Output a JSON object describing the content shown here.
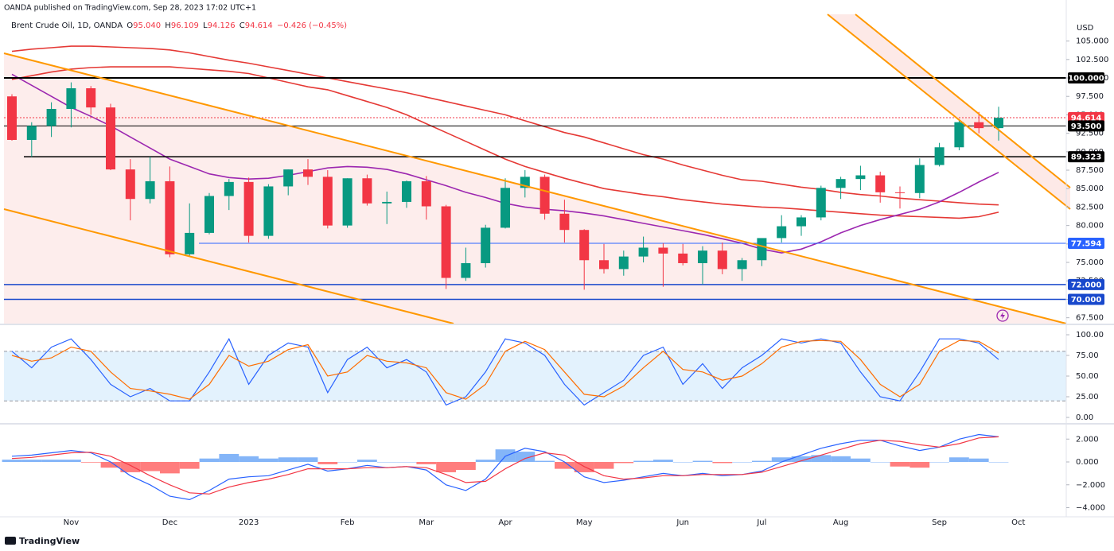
{
  "header": {
    "publisher": "OANDA published on TradingView.com, Sep 28, 2023 17:02 UTC+1",
    "symbol": "Brent Crude Oil, 1D, OANDA",
    "ohlc": [
      {
        "label": "O",
        "value": "95.040"
      },
      {
        "label": "H",
        "value": "96.109"
      },
      {
        "label": "L",
        "value": "94.126"
      },
      {
        "label": "C",
        "value": "94.614"
      }
    ],
    "change": "−0.426 (−0.45%)"
  },
  "footer": {
    "brand": "TradingView"
  },
  "chart_data": [
    {
      "type": "candlestick",
      "currency": "USD",
      "categories": [
        null,
        null,
        null,
        "Nov",
        null,
        null,
        null,
        null,
        "Dec",
        null,
        null,
        null,
        "2023",
        null,
        null,
        null,
        null,
        "Feb",
        null,
        null,
        null,
        "Mar",
        null,
        null,
        null,
        "Apr",
        null,
        null,
        null,
        "May",
        null,
        null,
        null,
        null,
        "Jun",
        null,
        null,
        null,
        "Jul",
        null,
        null,
        null,
        "Aug",
        null,
        null,
        null,
        null,
        "Sep",
        null,
        null,
        null,
        "Oct",
        null,
        null
      ],
      "open": [
        97.5,
        91.6,
        93.5,
        95.8,
        98.6,
        96.0,
        87.6,
        83.6,
        86.0,
        76.1,
        79.0,
        84.0,
        85.9,
        78.6,
        85.3,
        87.6,
        86.6,
        80.0,
        86.4,
        83.0,
        83.2,
        86.0,
        82.6,
        72.9,
        74.9,
        79.7,
        85.1,
        86.6,
        81.6,
        79.4,
        75.3,
        74.1,
        75.8,
        77.0,
        76.2,
        74.9,
        76.6,
        74.1,
        75.3,
        78.3,
        79.9,
        81.1,
        85.1,
        86.3,
        86.8,
        84.5,
        84.4,
        88.2,
        90.6,
        94.0,
        93.2,
        null,
        null,
        null
      ],
      "high": [
        97.8,
        94.0,
        96.7,
        99.4,
        98.9,
        96.5,
        89.0,
        89.3,
        88.0,
        83.0,
        84.4,
        86.3,
        86.5,
        85.6,
        87.6,
        89.0,
        87.5,
        86.4,
        86.9,
        84.6,
        86.1,
        86.7,
        82.8,
        77.0,
        80.1,
        86.4,
        87.5,
        86.9,
        83.5,
        79.5,
        77.5,
        76.6,
        78.5,
        77.6,
        77.5,
        77.2,
        77.7,
        75.6,
        78.1,
        81.4,
        81.4,
        85.4,
        86.6,
        88.1,
        87.3,
        85.3,
        89.1,
        91.2,
        94.4,
        95.4,
        96.1,
        null,
        null,
        null
      ],
      "low": [
        91.5,
        89.3,
        92.0,
        93.3,
        95.0,
        87.5,
        80.7,
        83.0,
        75.7,
        75.8,
        78.8,
        82.1,
        77.7,
        78.2,
        84.1,
        85.5,
        79.6,
        79.7,
        82.7,
        80.2,
        82.4,
        80.8,
        71.4,
        72.5,
        74.3,
        79.6,
        83.8,
        80.8,
        77.7,
        71.3,
        73.5,
        73.2,
        75.0,
        71.7,
        74.6,
        72.0,
        73.4,
        72.5,
        74.5,
        77.7,
        78.6,
        80.7,
        83.6,
        84.8,
        83.1,
        82.3,
        83.7,
        88.0,
        90.2,
        92.5,
        91.5,
        null,
        null,
        null
      ],
      "close": [
        91.6,
        93.5,
        95.8,
        98.6,
        96.0,
        87.6,
        83.6,
        86.0,
        76.1,
        79.0,
        84.0,
        85.9,
        78.6,
        85.3,
        87.6,
        86.6,
        80.0,
        86.4,
        83.0,
        83.2,
        86.0,
        82.6,
        72.9,
        74.9,
        79.7,
        85.1,
        86.6,
        81.6,
        79.4,
        75.3,
        74.1,
        75.8,
        77.0,
        76.2,
        74.9,
        76.6,
        74.1,
        75.3,
        78.3,
        79.9,
        81.1,
        85.1,
        86.3,
        86.8,
        84.5,
        84.4,
        88.2,
        90.6,
        94.0,
        93.2,
        94.6,
        null,
        null,
        null
      ],
      "up_color": "#089981",
      "down_color": "#f23645",
      "ylim": [
        66.6,
        109.7
      ],
      "yticks": [
        {
          "value": 67.5,
          "label": "67.500"
        },
        {
          "value": 70,
          "label": "70.000"
        },
        {
          "value": 72.5,
          "label": "72.500"
        },
        {
          "value": 75,
          "label": "75.000"
        },
        {
          "value": 77.5,
          "label": "77.500"
        },
        {
          "value": 80,
          "label": "80.000"
        },
        {
          "value": 82.5,
          "label": "82.500"
        },
        {
          "value": 85,
          "label": "85.000"
        },
        {
          "value": 87.5,
          "label": "87.500"
        },
        {
          "value": 90,
          "label": "90.000"
        },
        {
          "value": 92.5,
          "label": "92.500"
        },
        {
          "value": 95,
          "label": "95.000"
        },
        {
          "value": 97.5,
          "label": "97.500"
        },
        {
          "value": 100,
          "label": "100.000"
        },
        {
          "value": 102.5,
          "label": "102.500"
        },
        {
          "value": 105,
          "label": "105.000"
        }
      ],
      "levels": [
        {
          "value": 100,
          "label": "100.000",
          "color": "#000000"
        },
        {
          "value": 94.614,
          "label": "94.614",
          "color": "#f23645"
        },
        {
          "value": 93.5,
          "label": "93.500",
          "color": "#000000"
        },
        {
          "value": 89.323,
          "label": "89.323",
          "color": "#000000"
        },
        {
          "value": 77.594,
          "label": "77.594",
          "color": "#2962ff"
        },
        {
          "value": 72,
          "label": "72.000",
          "color": "#1848cc"
        },
        {
          "value": 70,
          "label": "70.000",
          "color": "#1848cc"
        }
      ],
      "moving_averages": [
        {
          "color": "#e53935",
          "values": [
            103.6,
            103.9,
            104.1,
            104.3,
            104.3,
            104.2,
            104.1,
            104.0,
            103.8,
            103.4,
            102.9,
            102.4,
            102.0,
            101.5,
            101.0,
            100.5,
            100.0,
            99.5,
            99.0,
            98.5,
            98.0,
            97.4,
            96.8,
            96.2,
            95.6,
            95.0,
            94.2,
            93.4,
            92.6,
            92.0,
            91.2,
            90.4,
            89.6,
            89.0,
            88.2,
            87.5,
            86.8,
            86.2,
            86.0,
            85.6,
            85.2,
            84.9,
            84.5,
            84.2,
            84.0,
            83.7,
            83.5,
            83.3,
            83.1,
            82.9,
            82.8,
            null,
            null,
            null
          ]
        },
        {
          "color": "#e53935",
          "values": [
            99.8,
            100.3,
            100.8,
            101.2,
            101.4,
            101.5,
            101.5,
            101.5,
            101.5,
            101.3,
            101.1,
            100.9,
            100.6,
            100.0,
            99.4,
            98.8,
            98.4,
            97.6,
            96.8,
            96.0,
            95.0,
            93.8,
            92.6,
            91.4,
            90.2,
            89.0,
            88.0,
            87.2,
            86.4,
            85.7,
            85.0,
            84.6,
            84.2,
            83.9,
            83.5,
            83.2,
            82.9,
            82.7,
            82.5,
            82.4,
            82.2,
            82.0,
            81.8,
            81.6,
            81.4,
            81.3,
            81.2,
            81.1,
            81.0,
            81.2,
            81.8,
            null,
            null,
            null
          ]
        },
        {
          "color": "#9c27b0",
          "values": [
            100.5,
            99.0,
            97.5,
            96.0,
            94.8,
            93.5,
            92.0,
            90.5,
            89.0,
            88.0,
            87.0,
            86.5,
            86.3,
            86.4,
            86.8,
            87.3,
            87.8,
            88.0,
            87.9,
            87.6,
            87.0,
            86.2,
            85.4,
            84.5,
            83.8,
            83.0,
            82.5,
            82.2,
            82.0,
            81.7,
            81.3,
            80.8,
            80.3,
            79.8,
            79.3,
            78.8,
            78.2,
            77.6,
            76.8,
            76.3,
            76.8,
            77.8,
            79.0,
            80.0,
            80.8,
            81.5,
            82.2,
            83.2,
            84.5,
            85.9,
            87.2,
            null,
            null,
            null
          ]
        }
      ]
    },
    {
      "type": "stochastic",
      "ylim": [
        -7.7,
        110.6
      ],
      "yticks": [
        {
          "value": 0,
          "label": "0.00"
        },
        {
          "value": 25,
          "label": "25.00"
        },
        {
          "value": 50,
          "label": "50.00"
        },
        {
          "value": 75,
          "label": "75.00"
        },
        {
          "value": 100,
          "label": "100.00"
        }
      ],
      "band": [
        20,
        80
      ],
      "band_color": "#e3f2fd",
      "series": [
        {
          "color": "#2962ff",
          "values": [
            80,
            60,
            85,
            95,
            70,
            40,
            25,
            35,
            20,
            20,
            55,
            95,
            40,
            75,
            90,
            85,
            30,
            70,
            85,
            60,
            70,
            55,
            15,
            25,
            55,
            95,
            90,
            75,
            40,
            15,
            30,
            45,
            75,
            85,
            40,
            65,
            35,
            60,
            75,
            95,
            90,
            95,
            90,
            55,
            25,
            20,
            55,
            95,
            95,
            90,
            70
          ]
        },
        {
          "color": "#ff6d00",
          "values": [
            75,
            68,
            72,
            85,
            80,
            55,
            35,
            32,
            28,
            22,
            40,
            75,
            62,
            68,
            82,
            88,
            50,
            55,
            75,
            68,
            66,
            60,
            30,
            22,
            40,
            80,
            92,
            82,
            55,
            28,
            25,
            38,
            60,
            80,
            58,
            55,
            45,
            50,
            65,
            85,
            92,
            93,
            92,
            70,
            40,
            25,
            40,
            80,
            93,
            92,
            78
          ]
        }
      ]
    },
    {
      "type": "macd",
      "ylim": [
        -4.8,
        3.2
      ],
      "yticks": [
        {
          "value": -4,
          "label": "−4.000"
        },
        {
          "value": -2,
          "label": "−2.000"
        },
        {
          "value": 0,
          "label": "0.000"
        },
        {
          "value": 2,
          "label": "2.000"
        }
      ],
      "histogram": [
        0.2,
        0.2,
        0.2,
        0.2,
        -0.05,
        -0.5,
        -0.9,
        -0.8,
        -1.0,
        -0.6,
        0.3,
        0.7,
        0.5,
        0.3,
        0.4,
        0.4,
        -0.2,
        0,
        0.2,
        0,
        0,
        -0.2,
        -0.9,
        -0.7,
        0.2,
        1.1,
        0.9,
        0.1,
        -0.6,
        -0.9,
        -0.6,
        -0.1,
        0.1,
        0.2,
        0,
        0.1,
        -0.1,
        0,
        0.1,
        0.4,
        0.5,
        0.6,
        0.5,
        0.3,
        0,
        -0.4,
        -0.5,
        0,
        0.4,
        0.3,
        0
      ],
      "hist_up_color": "#5b9cf6",
      "hist_down_color": "#ff5252",
      "series": [
        {
          "color": "#2962ff",
          "values": [
            0.5,
            0.6,
            0.8,
            1.0,
            0.8,
            0,
            -1.2,
            -2.0,
            -3.0,
            -3.3,
            -2.5,
            -1.5,
            -1.3,
            -1.2,
            -0.7,
            -0.2,
            -0.8,
            -0.6,
            -0.3,
            -0.5,
            -0.4,
            -0.7,
            -2.0,
            -2.5,
            -1.5,
            0.5,
            1.2,
            0.9,
            0,
            -1.3,
            -1.8,
            -1.6,
            -1.3,
            -1.0,
            -1.2,
            -1.0,
            -1.2,
            -1.1,
            -0.8,
            0,
            0.6,
            1.2,
            1.6,
            1.9,
            1.9,
            1.4,
            1.0,
            1.3,
            2.0,
            2.4,
            2.2
          ]
        },
        {
          "color": "#f23645",
          "values": [
            0.3,
            0.4,
            0.6,
            0.8,
            0.85,
            0.5,
            -0.3,
            -1.2,
            -2.0,
            -2.7,
            -2.8,
            -2.2,
            -1.8,
            -1.5,
            -1.1,
            -0.6,
            -0.6,
            -0.6,
            -0.5,
            -0.5,
            -0.4,
            -0.5,
            -1.1,
            -1.8,
            -1.7,
            -0.6,
            0.3,
            0.8,
            0.6,
            -0.4,
            -1.2,
            -1.5,
            -1.4,
            -1.2,
            -1.2,
            -1.1,
            -1.1,
            -1.1,
            -0.9,
            -0.4,
            0.1,
            0.6,
            1.1,
            1.6,
            1.9,
            1.8,
            1.5,
            1.3,
            1.6,
            2.1,
            2.2
          ]
        }
      ]
    }
  ]
}
